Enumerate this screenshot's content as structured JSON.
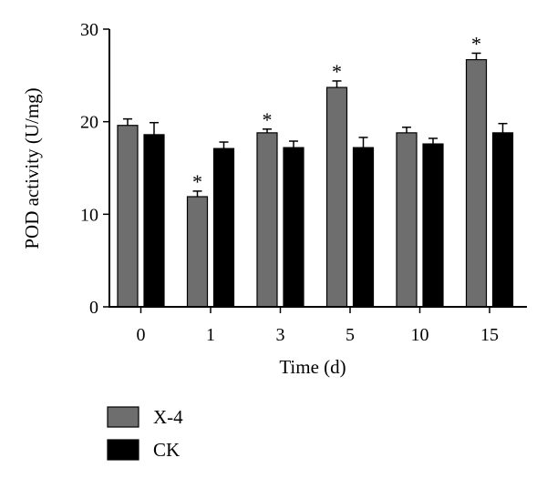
{
  "chart_data": {
    "type": "bar",
    "xlabel": "Time (d)",
    "ylabel": "POD activity (U/mg)",
    "categories": [
      "0",
      "1",
      "3",
      "5",
      "10",
      "15"
    ],
    "ylim": [
      0,
      30
    ],
    "yticks": [
      0,
      10,
      20,
      30
    ],
    "grid": false,
    "legend_position": "bottom-left",
    "series": [
      {
        "name": "X-4",
        "color": "#6e6e6e",
        "values": [
          19.6,
          11.9,
          18.8,
          23.7,
          18.8,
          26.7
        ],
        "errors": [
          0.7,
          0.6,
          0.4,
          0.7,
          0.6,
          0.7
        ],
        "significance": [
          "",
          "*",
          "*",
          "*",
          "",
          "*"
        ]
      },
      {
        "name": "CK",
        "color": "#000000",
        "values": [
          18.6,
          17.1,
          17.2,
          17.2,
          17.6,
          18.8
        ],
        "errors": [
          1.3,
          0.7,
          0.7,
          1.1,
          0.6,
          1.0
        ],
        "significance": [
          "",
          "",
          "",
          "",
          "",
          ""
        ]
      }
    ]
  }
}
